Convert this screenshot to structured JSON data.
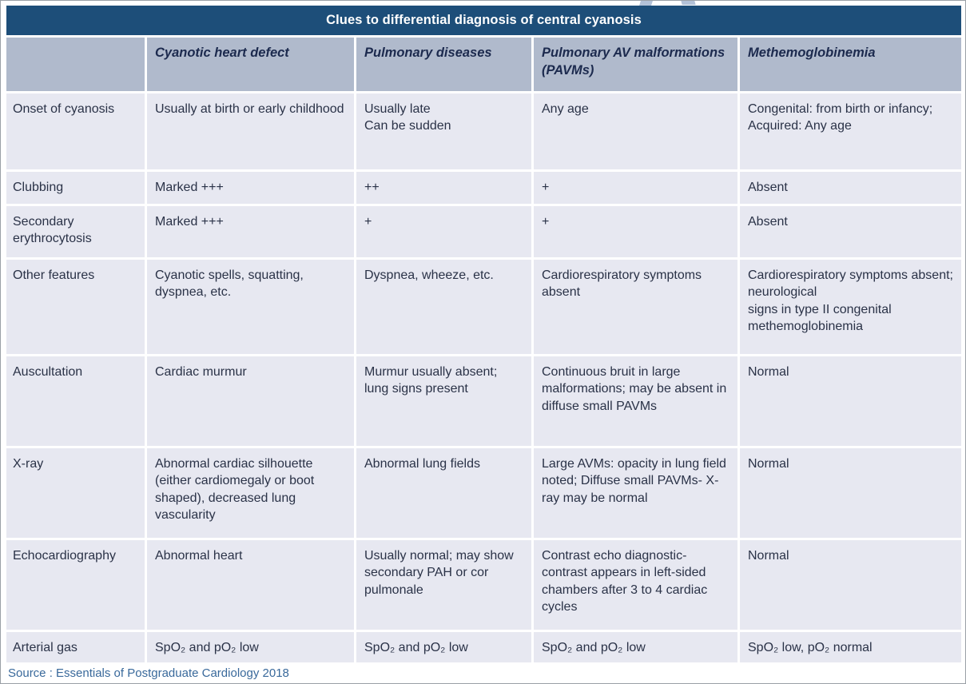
{
  "title": "Clues to differential diagnosis of central cyanosis",
  "source": "Source : Essentials of Postgraduate Cardiology 2018",
  "colors": {
    "title_bar": "#1d4e79",
    "header_bg": "#b0bacc",
    "cell_bg": "#e7e8f1",
    "header_text": "#1c2a4e",
    "body_text": "#2a3247",
    "source_text": "#39699b"
  },
  "table": {
    "columns": [
      "",
      "Cyanotic heart defect",
      "Pulmonary diseases",
      "Pulmonary AV malformations (PAVMs)",
      "Methemoglobinemia"
    ],
    "rows": [
      {
        "label": "Onset of cyanosis",
        "cells": [
          "Usually at birth or early childhood",
          "Usually late\nCan be sudden",
          "Any age",
          "Congenital: from birth or infancy;\nAcquired: Any age"
        ]
      },
      {
        "label": "Clubbing",
        "cells": [
          "Marked +++",
          "++",
          "+",
          "Absent"
        ]
      },
      {
        "label": "Secondary erythrocytosis",
        "cells": [
          "Marked +++",
          "+",
          "+",
          "Absent"
        ]
      },
      {
        "label": "Other features",
        "cells": [
          "Cyanotic spells, squatting, dyspnea, etc.",
          "Dyspnea, wheeze, etc.",
          "Cardiorespiratory symptoms absent",
          "Cardiorespiratory symptoms absent; neurological\nsigns in type II congenital methemoglobinemia"
        ]
      },
      {
        "label": "Auscultation",
        "cells": [
          "Cardiac murmur",
          "Murmur usually absent; lung signs present",
          "Continuous bruit in large malformations; may be absent in diffuse small PAVMs",
          "Normal"
        ]
      },
      {
        "label": "X-ray",
        "cells": [
          "Abnormal cardiac silhouette (either cardiomegaly or boot shaped), decreased lung vascularity",
          "Abnormal lung fields",
          "Large AVMs: opacity in lung field noted; Diffuse small PAVMs- X-ray may be normal",
          "Normal"
        ]
      },
      {
        "label": "Echocardiography",
        "cells": [
          "Abnormal heart",
          "Usually normal; may show secondary PAH or cor pulmonale",
          "Contrast echo diagnostic- contrast appears in left-sided chambers after 3 to 4 cardiac cycles",
          "Normal"
        ]
      },
      {
        "label": "Arterial gas",
        "cells": [
          "SpO₂ and pO₂ low",
          "SpO₂ and pO₂ low",
          "SpO₂ and pO₂ low",
          "SpO₂ low, pO₂ normal"
        ]
      }
    ]
  }
}
